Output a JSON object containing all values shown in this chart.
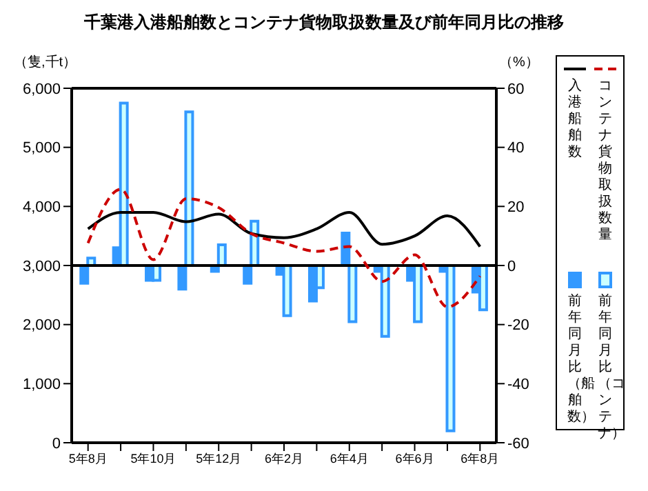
{
  "chart_data": {
    "type": "bar",
    "title": "千葉港入港船舶数とコンテナ貨物取扱数量及び前年同月比の推移",
    "ylabel": "（隻,千t）",
    "y2label": "（%）",
    "categories": [
      "5年8月",
      null,
      "5年10月",
      null,
      "5年12月",
      null,
      "6年2月",
      null,
      "6年4月",
      null,
      "6年6月",
      null,
      "6年8月"
    ],
    "series": [
      {
        "name": "入港船舶数",
        "type": "line",
        "color": "#000000",
        "line_style": "solid",
        "values": [
          3620,
          3900,
          3900,
          3740,
          3870,
          3540,
          3470,
          3620,
          3900,
          3360,
          3500,
          3840,
          3320
        ]
      },
      {
        "name": "コンテナ貨物取扱数量",
        "type": "line",
        "color": "#cc0000",
        "line_style": "dashed",
        "values": [
          3380,
          4290,
          3100,
          4130,
          3980,
          3540,
          3380,
          3240,
          3320,
          2730,
          3180,
          2300,
          2820
        ]
      },
      {
        "name": "前年同月比（船舶数）",
        "axis": "y2",
        "color": "#3399ff",
        "values": [
          -6,
          6,
          -5,
          -8,
          -2,
          -6,
          -3,
          -12,
          11,
          -2,
          -5,
          -2,
          -9
        ]
      },
      {
        "name": "前年同月比（コンテナ）",
        "axis": "y2",
        "color": "#ccffff",
        "values": [
          2.5,
          55,
          -5,
          52,
          7,
          15,
          -17,
          -7.5,
          -19,
          -24,
          -19,
          -56,
          -15
        ]
      }
    ],
    "ylim": [
      0,
      6000
    ],
    "yticks": [
      {
        "value": 0,
        "label": "0"
      },
      {
        "value": 1000,
        "label": "1,000"
      },
      {
        "value": 2000,
        "label": "2,000"
      },
      {
        "value": 3000,
        "label": "3,000"
      },
      {
        "value": 4000,
        "label": "4,000"
      },
      {
        "value": 5000,
        "label": "5,000"
      },
      {
        "value": 6000,
        "label": "6,000"
      }
    ],
    "y2lim": [
      -60,
      60
    ],
    "y2ticks": [
      -60,
      -40,
      -20,
      0,
      20,
      40,
      60
    ],
    "ref_lines": [
      {
        "axis": "y2",
        "value": 0,
        "color": "#000000"
      }
    ],
    "grid": false,
    "legend": "right",
    "marker": "none"
  }
}
